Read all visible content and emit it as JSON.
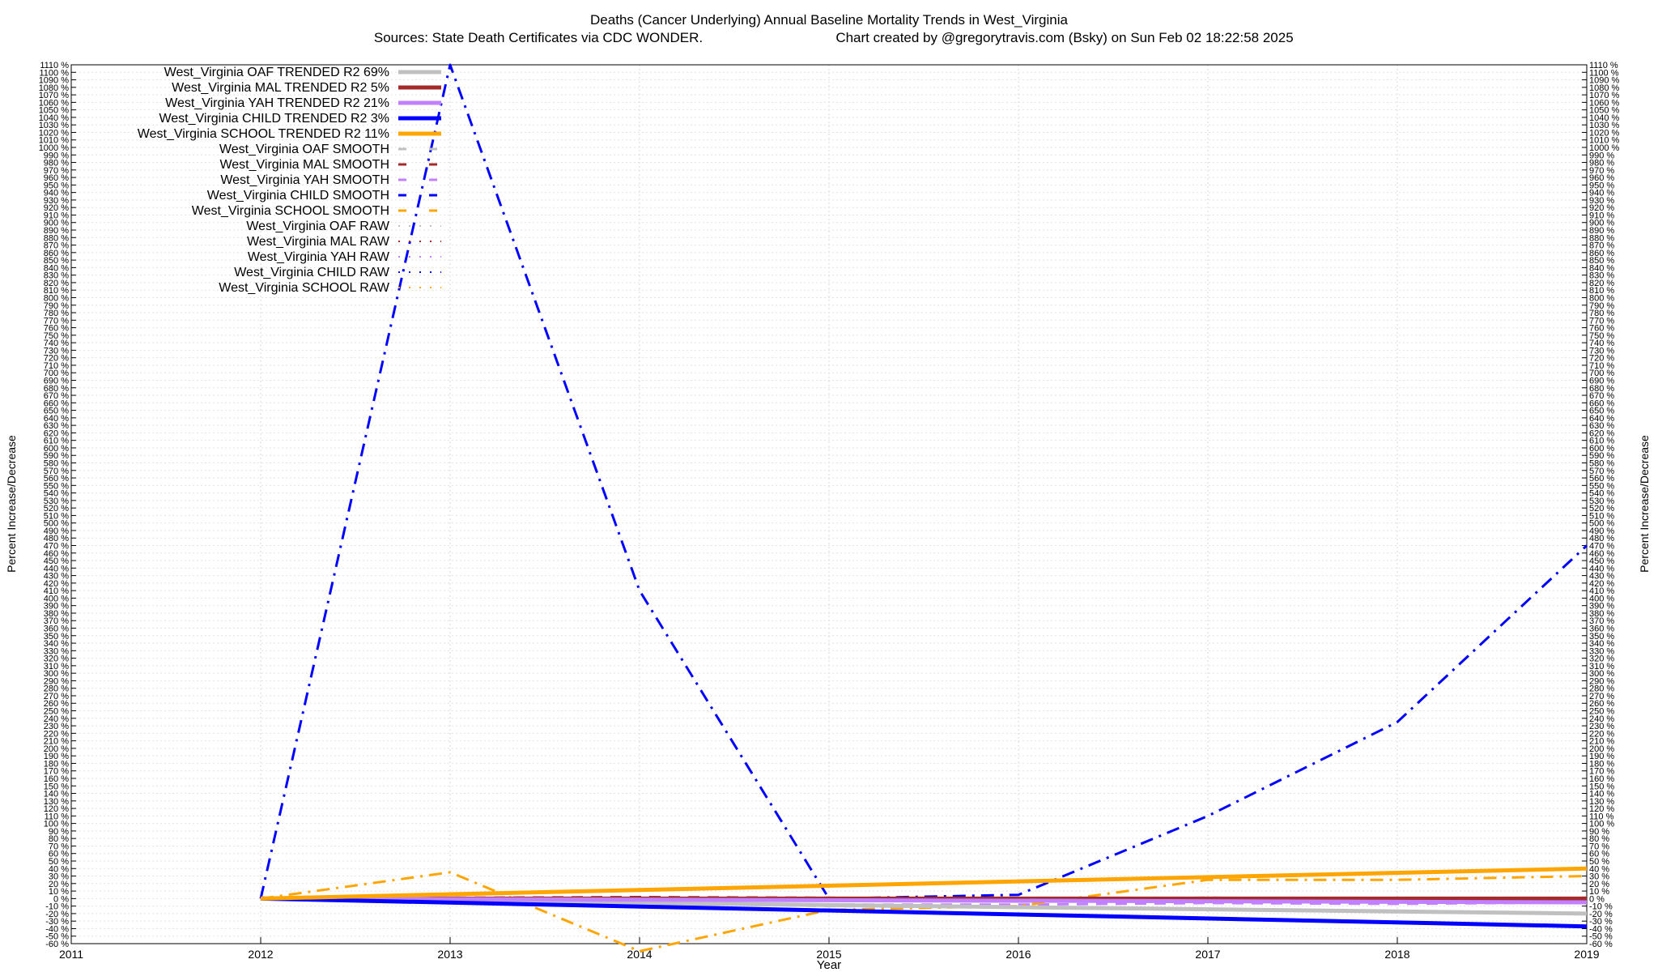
{
  "chart_data": {
    "type": "line",
    "title": "Deaths (Cancer Underlying)  Annual Baseline Mortality Trends in West_Virginia",
    "subtitle_left": "Sources: State Death Certificates via CDC WONDER.",
    "subtitle_right": "Chart created by @gregorytravis.com (Bsky) on Sun Feb 02 18:22:58 2025",
    "xlabel": "Year",
    "ylabel_left": "Percent Increase/Decrease",
    "ylabel_right": "Percent Increase/Decrease",
    "xlim": [
      2011,
      2019
    ],
    "ylim": [
      -60,
      1110
    ],
    "x_ticks": [
      2011,
      2012,
      2013,
      2014,
      2015,
      2016,
      2017,
      2018,
      2019
    ],
    "y_tick_step": 10,
    "y_tick_suffix": " %",
    "grid": true,
    "legend_position": "top-left",
    "series": [
      {
        "name": "West_Virginia OAF TRENDED R2  69%",
        "color": "#c0c0c0",
        "style": "solid",
        "width": 5,
        "x": [
          2012,
          2019
        ],
        "y": [
          0,
          -20
        ]
      },
      {
        "name": "West_Virginia MAL TRENDED R2   5%",
        "color": "#a52a2a",
        "style": "solid",
        "width": 5,
        "x": [
          2012,
          2019
        ],
        "y": [
          0,
          0
        ]
      },
      {
        "name": "West_Virginia YAH TRENDED R2  21%",
        "color": "#c080ff",
        "style": "solid",
        "width": 5,
        "x": [
          2012,
          2019
        ],
        "y": [
          0,
          -5
        ]
      },
      {
        "name": "West_Virginia CHILD TRENDED R2   3%",
        "color": "#0000ff",
        "style": "solid",
        "width": 5,
        "x": [
          2012,
          2019
        ],
        "y": [
          0,
          -37
        ]
      },
      {
        "name": "West_Virginia SCHOOL TRENDED R2  11%",
        "color": "#ffa500",
        "style": "solid",
        "width": 5,
        "x": [
          2012,
          2019
        ],
        "y": [
          0,
          40
        ]
      },
      {
        "name": "West_Virginia OAF SMOOTH",
        "color": "#c0c0c0",
        "style": "dash",
        "width": 3,
        "x": [
          2012,
          2013,
          2014,
          2015,
          2016,
          2017,
          2018,
          2019
        ],
        "y": [
          0,
          -2,
          -6,
          -10,
          -12,
          -15,
          -18,
          -20
        ]
      },
      {
        "name": "West_Virginia MAL SMOOTH",
        "color": "#a52a2a",
        "style": "dash",
        "width": 3,
        "x": [
          2012,
          2013,
          2014,
          2015,
          2016,
          2017,
          2018,
          2019
        ],
        "y": [
          0,
          1,
          2,
          1,
          0,
          1,
          0,
          1
        ]
      },
      {
        "name": "West_Virginia YAH SMOOTH",
        "color": "#c080ff",
        "style": "dash",
        "width": 3,
        "x": [
          2012,
          2013,
          2014,
          2015,
          2016,
          2017,
          2018,
          2019
        ],
        "y": [
          0,
          -3,
          -6,
          -8,
          -8,
          -6,
          -7,
          -5
        ]
      },
      {
        "name": "West_Virginia CHILD SMOOTH",
        "color": "#0000ff",
        "style": "dashdot",
        "width": 3,
        "x": [
          2012,
          2013,
          2014,
          2015,
          2016,
          2017,
          2018,
          2019
        ],
        "y": [
          0,
          1110,
          410,
          0,
          5,
          110,
          235,
          470
        ]
      },
      {
        "name": "West_Virginia SCHOOL SMOOTH",
        "color": "#ffa500",
        "style": "dashdot",
        "width": 3,
        "x": [
          2012,
          2013,
          2014,
          2015,
          2016,
          2017,
          2018,
          2019
        ],
        "y": [
          0,
          35,
          -70,
          -15,
          -10,
          25,
          25,
          30
        ]
      },
      {
        "name": "West_Virginia OAF RAW",
        "color": "#c0c0c0",
        "style": "dot",
        "width": 2,
        "x": [],
        "y": []
      },
      {
        "name": "West_Virginia MAL RAW",
        "color": "#a52a2a",
        "style": "dot",
        "width": 2,
        "x": [],
        "y": []
      },
      {
        "name": "West_Virginia YAH RAW",
        "color": "#c080ff",
        "style": "dot",
        "width": 2,
        "x": [],
        "y": []
      },
      {
        "name": "West_Virginia CHILD RAW",
        "color": "#0000ff",
        "style": "dot",
        "width": 2,
        "x": [],
        "y": []
      },
      {
        "name": "West_Virginia SCHOOL RAW",
        "color": "#ffa500",
        "style": "dot",
        "width": 2,
        "x": [],
        "y": []
      }
    ]
  }
}
